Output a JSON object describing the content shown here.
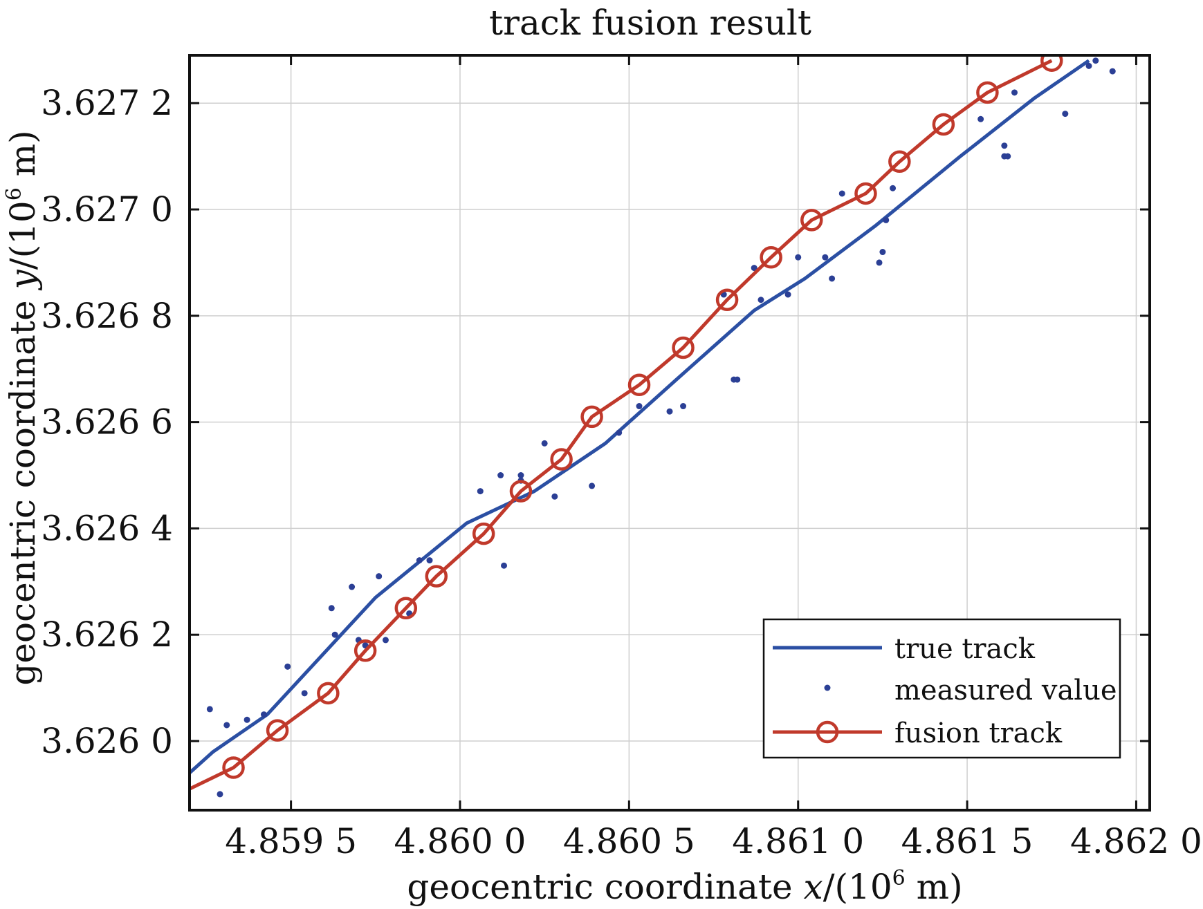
{
  "chart_data": {
    "type": "line",
    "title": "track fusion result",
    "xlabel": {
      "prefix": "geocentric coordinate ",
      "var": "x",
      "sep": "/(10",
      "exp": "6",
      "unit": " m)"
    },
    "ylabel": {
      "prefix": "geocentric coordinate ",
      "var": "y",
      "sep": "/(10",
      "exp": "6",
      "unit": " m)"
    },
    "xlim": [
      4.8592,
      4.86204
    ],
    "ylim": [
      3.62587,
      3.62729
    ],
    "xticks": [
      {
        "value": 4.8595,
        "label": "4.859 5"
      },
      {
        "value": 4.86,
        "label": "4.860 0"
      },
      {
        "value": 4.8605,
        "label": "4.860 5"
      },
      {
        "value": 4.861,
        "label": "4.861 0"
      },
      {
        "value": 4.8615,
        "label": "4.861 5"
      },
      {
        "value": 4.862,
        "label": "4.862 0"
      }
    ],
    "yticks": [
      {
        "value": 3.626,
        "label": "3.626 0"
      },
      {
        "value": 3.6262,
        "label": "3.626 2"
      },
      {
        "value": 3.6264,
        "label": "3.626 4"
      },
      {
        "value": 3.6266,
        "label": "3.626 6"
      },
      {
        "value": 3.6268,
        "label": "3.626 8"
      },
      {
        "value": 3.627,
        "label": "3.627 0"
      },
      {
        "value": 3.6272,
        "label": "3.627 2"
      }
    ],
    "grid": true,
    "legend_position": "bottom-right",
    "series": [
      {
        "name": "true track",
        "style": "line",
        "color": "#2b4fa3",
        "x": [
          4.8592,
          4.85927,
          4.85943,
          4.85975,
          4.86002,
          4.86022,
          4.86043,
          4.86064,
          4.86087,
          4.86102,
          4.86123,
          4.86148,
          4.8617,
          4.86186
        ],
        "y": [
          3.62594,
          3.62598,
          3.62605,
          3.62627,
          3.62641,
          3.62647,
          3.62656,
          3.62668,
          3.62681,
          3.62687,
          3.62697,
          3.6271,
          3.62721,
          3.62728
        ]
      },
      {
        "name": "measured value",
        "style": "scatter",
        "color": "#2b3f95",
        "x": [
          4.85926,
          4.85929,
          4.85931,
          4.85937,
          4.85942,
          4.85949,
          4.85954,
          4.85962,
          4.85963,
          4.85968,
          4.8597,
          4.85972,
          4.85976,
          4.85978,
          4.85985,
          4.85988,
          4.85991,
          4.86006,
          4.86012,
          4.86013,
          4.86018,
          4.86018,
          4.86025,
          4.86028,
          4.86039,
          4.86047,
          4.86053,
          4.86062,
          4.86066,
          4.86081,
          4.86082,
          4.86078,
          4.86087,
          4.86089,
          4.86097,
          4.861,
          4.86108,
          4.8611,
          4.86113,
          4.86124,
          4.86125,
          4.86126,
          4.86128,
          4.86154,
          4.86161,
          4.86161,
          4.86162,
          4.86164,
          4.86179,
          4.86186,
          4.86188,
          4.86193
        ],
        "y": [
          3.62606,
          3.6259,
          3.62603,
          3.62604,
          3.62605,
          3.62614,
          3.62609,
          3.62625,
          3.6262,
          3.62629,
          3.62619,
          3.62618,
          3.62631,
          3.62619,
          3.62624,
          3.62634,
          3.62634,
          3.62647,
          3.6265,
          3.62633,
          3.6265,
          3.62649,
          3.62656,
          3.62646,
          3.62648,
          3.62658,
          3.62663,
          3.62662,
          3.62663,
          3.62668,
          3.62668,
          3.62684,
          3.62689,
          3.62683,
          3.62684,
          3.62691,
          3.62691,
          3.62687,
          3.62703,
          3.6269,
          3.62692,
          3.62698,
          3.62704,
          3.62717,
          3.6271,
          3.62712,
          3.6271,
          3.62722,
          3.62718,
          3.62727,
          3.62728,
          3.62726
        ]
      },
      {
        "name": "fusion track",
        "style": "line-marker",
        "color": "#c0392b",
        "x": [
          4.8592,
          4.85933,
          4.85946,
          4.85961,
          4.85972,
          4.85984,
          4.85993,
          4.86007,
          4.86018,
          4.8603,
          4.86039,
          4.86053,
          4.86066,
          4.86079,
          4.86092,
          4.86104,
          4.8612,
          4.8613,
          4.86143,
          4.86156,
          4.86175
        ],
        "y": [
          3.62591,
          3.62595,
          3.62602,
          3.62609,
          3.62617,
          3.62625,
          3.62631,
          3.62639,
          3.62647,
          3.62653,
          3.62661,
          3.62667,
          3.62674,
          3.62683,
          3.62691,
          3.62698,
          3.62703,
          3.62709,
          3.62716,
          3.62722,
          3.62728
        ],
        "markers_from_index": 1
      }
    ]
  }
}
